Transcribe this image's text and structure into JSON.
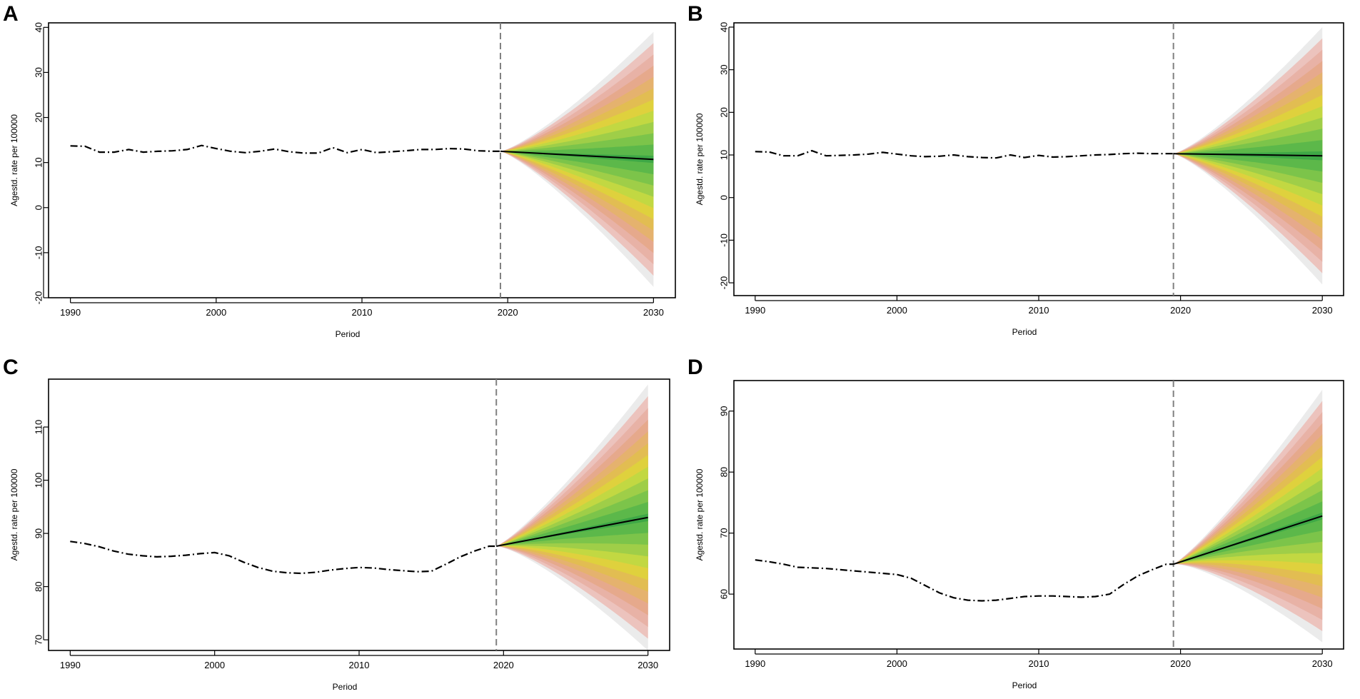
{
  "figure": {
    "colors": {
      "history_line": "#000000",
      "forecast_line": "#000000",
      "divider": "#808080",
      "fan_bands": [
        "#ebebeb",
        "#ecc3bd",
        "#e8b2a6",
        "#e6a98c",
        "#e5b26e",
        "#e2bd52",
        "#dfd13d",
        "#c2d842",
        "#9fce48",
        "#7cc44a",
        "#5cb84a",
        "#3ea846"
      ]
    }
  },
  "chart_data": [
    {
      "type": "line",
      "panel": "A",
      "xlabel": "Period",
      "ylabel": "Agestd. rate per 100000",
      "xlim": [
        1988.5,
        2031.5
      ],
      "ylim": [
        -20,
        41
      ],
      "xticks": [
        1990,
        2000,
        2010,
        2020,
        2030
      ],
      "xtick_labels": [
        "1990",
        "2000",
        "2010",
        "2020",
        "2030"
      ],
      "yticks": [
        -20,
        -10,
        0,
        10,
        20,
        30,
        40
      ],
      "ytick_labels": [
        "-20",
        "-10",
        "0",
        "10",
        "20",
        "30",
        "40"
      ],
      "forecast_start": 2019.5,
      "history": {
        "x": [
          1990,
          1991,
          1992,
          1993,
          1994,
          1995,
          1996,
          1997,
          1998,
          1999,
          2000,
          2001,
          2002,
          2003,
          2004,
          2005,
          2006,
          2007,
          2008,
          2009,
          2010,
          2011,
          2012,
          2013,
          2014,
          2015,
          2016,
          2017,
          2018,
          2019
        ],
        "y": [
          13.7,
          13.6,
          12.3,
          12.3,
          12.9,
          12.3,
          12.5,
          12.6,
          12.9,
          13.8,
          13.1,
          12.5,
          12.2,
          12.5,
          13.0,
          12.4,
          12.1,
          12.1,
          13.3,
          12.2,
          12.9,
          12.2,
          12.4,
          12.6,
          12.9,
          12.9,
          13.1,
          13.0,
          12.6,
          12.5
        ]
      },
      "forecast": {
        "x": [
          2019.5,
          2030
        ],
        "y": [
          12.5,
          10.7
        ]
      },
      "fan_upper_2030": [
        39,
        34.6,
        29.4,
        26.5,
        23.6,
        20.7,
        17.8,
        15.0,
        13.0
      ]
    },
    {
      "type": "line",
      "panel": "B",
      "xlabel": "Period",
      "ylabel": "Agestd. rate per 100000",
      "xlim": [
        1988.5,
        2031.5
      ],
      "ylim": [
        -23,
        41
      ],
      "xticks": [
        1990,
        2000,
        2010,
        2020,
        2030
      ],
      "xtick_labels": [
        "1990",
        "2000",
        "2010",
        "2020",
        "2030"
      ],
      "yticks": [
        -20,
        -10,
        0,
        10,
        20,
        30,
        40
      ],
      "ytick_labels": [
        "-20",
        "-10",
        "0",
        "10",
        "20",
        "30",
        "40"
      ],
      "forecast_start": 2019.5,
      "history": {
        "x": [
          1990,
          1991,
          1992,
          1993,
          1994,
          1995,
          1996,
          1997,
          1998,
          1999,
          2000,
          2001,
          2002,
          2003,
          2004,
          2005,
          2006,
          2007,
          2008,
          2009,
          2010,
          2011,
          2012,
          2013,
          2014,
          2015,
          2016,
          2017,
          2018,
          2019
        ],
        "y": [
          10.8,
          10.7,
          9.8,
          9.8,
          11.0,
          9.8,
          9.9,
          10.0,
          10.2,
          10.6,
          10.2,
          9.8,
          9.6,
          9.7,
          10.0,
          9.6,
          9.4,
          9.3,
          10.0,
          9.4,
          9.9,
          9.5,
          9.6,
          9.8,
          10.0,
          10.1,
          10.3,
          10.4,
          10.3,
          10.3
        ]
      },
      "forecast": {
        "x": [
          2019.5,
          2030
        ],
        "y": [
          10.3,
          9.8
        ]
      },
      "fan_upper_2030": [
        40,
        35.3,
        30.0,
        27.2,
        24.4,
        21.6,
        18.7,
        15.8,
        12.8
      ]
    },
    {
      "type": "line",
      "panel": "C",
      "xlabel": "Period",
      "ylabel": "Agestd. rate per 100000",
      "xlim": [
        1988.5,
        2031.5
      ],
      "ylim": [
        68,
        119
      ],
      "xticks": [
        1990,
        2000,
        2010,
        2020,
        2030
      ],
      "xtick_labels": [
        "1990",
        "2000",
        "2010",
        "2020",
        "2030"
      ],
      "yticks": [
        70,
        80,
        90,
        100,
        110
      ],
      "ytick_labels": [
        "70",
        "80",
        "90",
        "100",
        "110"
      ],
      "forecast_start": 2019.5,
      "history": {
        "x": [
          1990,
          1991,
          1992,
          1993,
          1994,
          1995,
          1996,
          1997,
          1998,
          1999,
          2000,
          2001,
          2002,
          2003,
          2004,
          2005,
          2006,
          2007,
          2008,
          2009,
          2010,
          2011,
          2012,
          2013,
          2014,
          2015,
          2016,
          2017,
          2018,
          2019
        ],
        "y": [
          88.5,
          88.1,
          87.5,
          86.7,
          86.1,
          85.8,
          85.6,
          85.7,
          85.9,
          86.2,
          86.4,
          85.8,
          84.6,
          83.6,
          82.9,
          82.6,
          82.5,
          82.7,
          83.1,
          83.4,
          83.6,
          83.5,
          83.2,
          83.0,
          82.8,
          82.9,
          84.2,
          85.6,
          86.7,
          87.6
        ]
      },
      "forecast": {
        "x": [
          2019.5,
          2030
        ],
        "y": [
          87.6,
          93.0
        ]
      },
      "fan_upper_2030": [
        118,
        114,
        109.4,
        107.0,
        104.6,
        102.2,
        99.8,
        97.4,
        95.0
      ]
    },
    {
      "type": "line",
      "panel": "D",
      "xlabel": "Period",
      "ylabel": "Agestd. rate per 100000",
      "xlim": [
        1988.5,
        2031.5
      ],
      "ylim": [
        51,
        95
      ],
      "xticks": [
        1990,
        2000,
        2010,
        2020,
        2030
      ],
      "xtick_labels": [
        "1990",
        "2000",
        "2010",
        "2020",
        "2030"
      ],
      "yticks": [
        60,
        70,
        80,
        90
      ],
      "ytick_labels": [
        "60",
        "70",
        "80",
        "90"
      ],
      "forecast_start": 2019.5,
      "history": {
        "x": [
          1990,
          1991,
          1992,
          1993,
          1994,
          1995,
          1996,
          1997,
          1998,
          1999,
          2000,
          2001,
          2002,
          2003,
          2004,
          2005,
          2006,
          2007,
          2008,
          2009,
          2010,
          2011,
          2012,
          2013,
          2014,
          2015,
          2016,
          2017,
          2018,
          2019
        ],
        "y": [
          65.6,
          65.3,
          64.9,
          64.4,
          64.3,
          64.2,
          64.0,
          63.8,
          63.6,
          63.4,
          63.2,
          62.6,
          61.4,
          60.2,
          59.4,
          59.0,
          58.9,
          59.0,
          59.3,
          59.6,
          59.7,
          59.7,
          59.6,
          59.5,
          59.6,
          60.0,
          61.6,
          63.0,
          64.0,
          64.9
        ]
      },
      "forecast": {
        "x": [
          2019.5,
          2030
        ],
        "y": [
          64.9,
          72.8
        ]
      },
      "fan_upper_2030": [
        93.5,
        90.2,
        86.5,
        84.5,
        82.5,
        80.5,
        78.4,
        76.4,
        74.4
      ]
    }
  ]
}
